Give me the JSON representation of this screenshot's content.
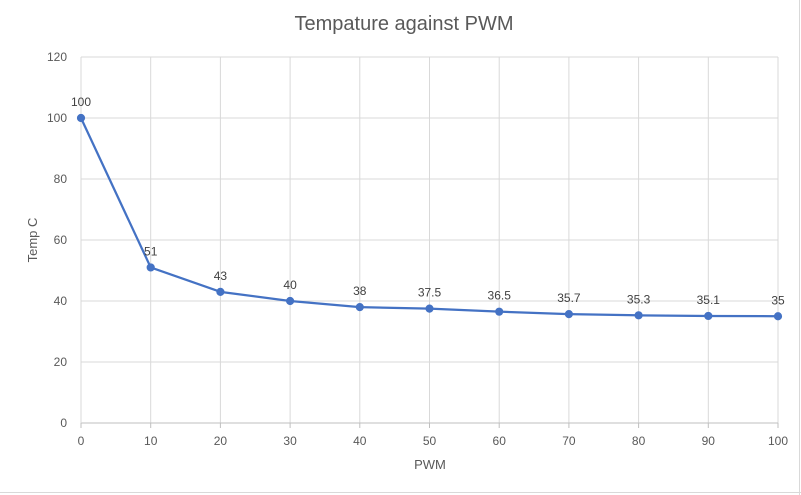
{
  "chart_data": {
    "type": "line",
    "title": "Tempature against PWM",
    "xlabel": "PWM",
    "ylabel": "Temp C",
    "x": [
      0,
      10,
      20,
      30,
      40,
      50,
      60,
      70,
      80,
      90,
      100
    ],
    "series": [
      {
        "values": [
          100,
          51,
          43,
          40,
          38,
          37.5,
          36.5,
          35.7,
          35.3,
          35.1,
          35
        ],
        "data_labels": [
          "100",
          "51",
          "43",
          "40",
          "38",
          "37.5",
          "36.5",
          "35.7",
          "35.3",
          "35.1",
          "35"
        ],
        "color": "#4472c4"
      }
    ],
    "xlim": [
      0,
      100
    ],
    "ylim": [
      0,
      120
    ],
    "x_ticks": [
      "0",
      "10",
      "20",
      "30",
      "40",
      "50",
      "60",
      "70",
      "80",
      "90",
      "100"
    ],
    "y_ticks": [
      "0",
      "20",
      "40",
      "60",
      "80",
      "100",
      "120"
    ],
    "grid": true,
    "legend": "none"
  }
}
